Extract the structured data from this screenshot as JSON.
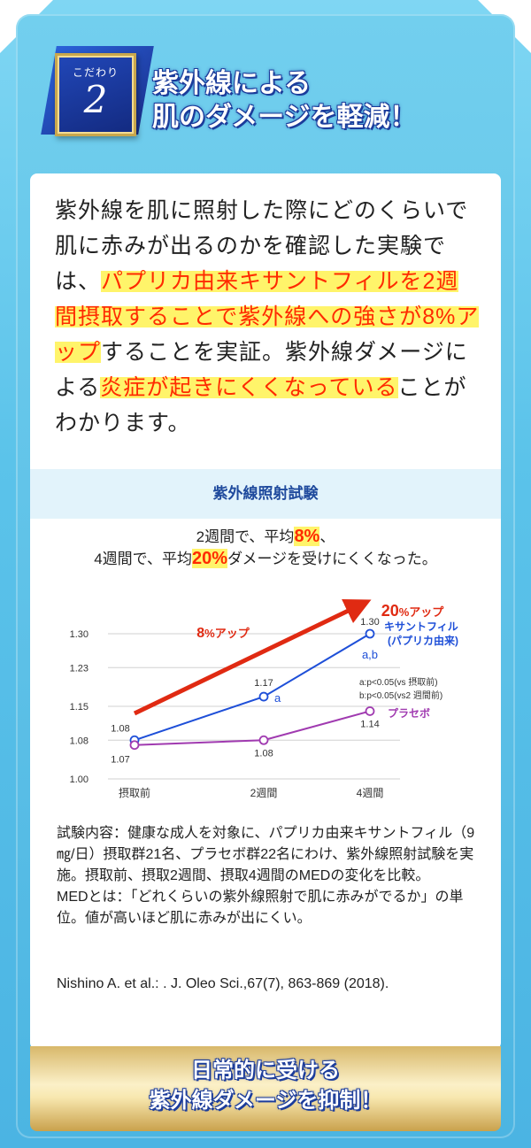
{
  "badge": {
    "small": "こだわり",
    "number": "2"
  },
  "title": {
    "line1": "紫外線による",
    "line2": "肌のダメージを軽減！"
  },
  "intro": {
    "part1": "紫外線を肌に照射した際にどのくらいで肌に赤みが出るのかを確認した実験では、",
    "highlight1": "パプリカ由来キサントフィルを2週間摂取することで紫外線への強さが8%アップ",
    "part2": "することを実証。紫外線ダメージによる",
    "highlight2": "炎症が起きにくくなっている",
    "part3": "ことがわかります。"
  },
  "graph": {
    "heading": "紫外線照射試験",
    "summary_l1_a": "2週間で、平均",
    "summary_l1_hl": "8%",
    "summary_l1_b": "、",
    "summary_l2_a": "4週間で、平均",
    "summary_l2_hl": "20%",
    "summary_l2_b": "ダメージを受けにくくなった。"
  },
  "chart_data": {
    "type": "line",
    "categories": [
      "摂取前",
      "2週間",
      "4週間"
    ],
    "series": [
      {
        "name": "キサントフィル (パプリカ由来)",
        "values": [
          1.08,
          1.17,
          1.3
        ],
        "color": "#1e4fd8",
        "labels": [
          "1.08",
          "1.17",
          "1.30"
        ],
        "annotations": [
          "",
          "a",
          "a,b"
        ]
      },
      {
        "name": "プラセボ",
        "values": [
          1.07,
          1.08,
          1.14
        ],
        "color": "#a03ab0",
        "labels": [
          "1.07",
          "1.08",
          "1.14"
        ],
        "annotations": [
          "",
          "",
          ""
        ]
      }
    ],
    "yticks": [
      "1.30",
      "1.23",
      "1.15",
      "1.08",
      "1.00"
    ],
    "ylim": [
      1.0,
      1.3
    ],
    "legend_series1_l1": "キサントフィル",
    "legend_series1_l2": "(パプリカ由来)",
    "legend_series2": "プラセボ",
    "sig_note1": "a:p<0.05(vs 摂取前)",
    "sig_note2": "b:p<0.05(vs2 週間前)",
    "arrow_label_left_num": "8",
    "arrow_label_left_unit": "%アップ",
    "arrow_label_right_num": "20",
    "arrow_label_right_unit": "%アップ",
    "colors": {
      "arrow": "#e02a12",
      "grid": "#d0d0d0"
    }
  },
  "notes": {
    "line1": "試験内容：健康な成人を対象に、パプリカ由来キサントフィル（9㎎/日）摂取群21名、プラセボ群22名にわけ、紫外線照射試験を実施。摂取前、摂取2週間、摂取4週間のMEDの変化を比較。",
    "line2": "MEDとは：「どれくらいの紫外線照射で肌に赤みがでるか」の単位。値が高いほど肌に赤みが出にくい。"
  },
  "citation": "Nishino A. et al.: . J. Oleo Sci.,67(7), 863-869 (2018).",
  "footer": {
    "line1": "日常的に受ける",
    "line2": "紫外線ダメージを抑制！"
  }
}
